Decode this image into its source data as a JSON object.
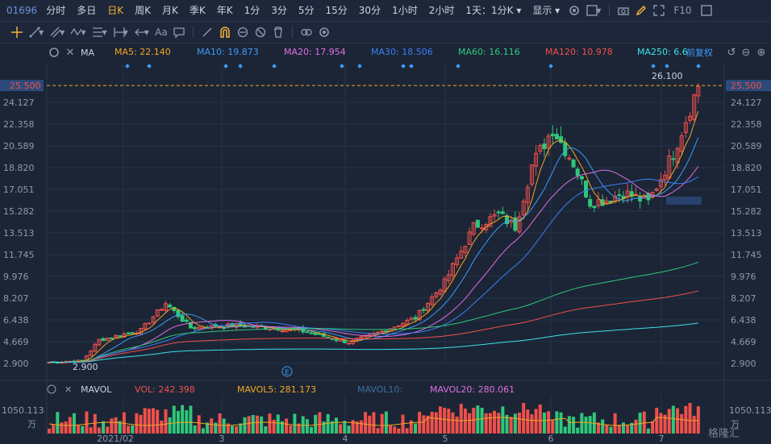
{
  "header": {
    "stock_code": "01696",
    "periods": [
      "分时",
      "多日",
      "日K",
      "周K",
      "月K",
      "季K",
      "年K",
      "1分",
      "3分",
      "5分",
      "15分",
      "30分",
      "1小时",
      "2小时"
    ],
    "active_period": "日K",
    "dropdown_label": "1天：1分K",
    "display_label": "显示",
    "f10_label": "F10"
  },
  "ma_indicators": {
    "name": "MA",
    "items": [
      {
        "label": "MA5: 22.140",
        "color": "#f5a623"
      },
      {
        "label": "MA10: 19.873",
        "color": "#3d9cf5"
      },
      {
        "label": "MA20: 17.954",
        "color": "#e070e0"
      },
      {
        "label": "MA30: 18.506",
        "color": "#3d7ef5"
      },
      {
        "label": "MA60: 16.116",
        "color": "#2fc77a"
      },
      {
        "label": "MA120: 10.978",
        "color": "#f0504a"
      },
      {
        "label": "MA250: 6.6",
        "color": "#3fe0e8"
      }
    ],
    "adjust_label": "前复权"
  },
  "vol_indicators": {
    "name": "MAVOL",
    "items": [
      {
        "label": "VOL: 242.398",
        "color": "#f0504a"
      },
      {
        "label": "MAVOL5: 281.173",
        "color": "#f5a623"
      },
      {
        "label": "MAVOL10:",
        "color": "#3d6fa0"
      },
      {
        "label": "MAVOL20: 280.061",
        "color": "#e070e0"
      }
    ],
    "axis_max": "1050.113",
    "unit": "万"
  },
  "chart_data": {
    "type": "candlestick",
    "y_ticks": [
      "24.127",
      "22.358",
      "20.589",
      "18.820",
      "17.051",
      "15.282",
      "13.513",
      "11.745",
      "9.976",
      "8.207",
      "6.438",
      "4.669",
      "2.900"
    ],
    "ylim": [
      2.9,
      25.9
    ],
    "x_ticks": [
      "2021/02",
      "3",
      "4",
      "5",
      "6",
      "7"
    ],
    "current_price_label": "25.500",
    "current_price": 25.5,
    "max_label": "26.100",
    "min_label": "2.900",
    "event_marker": "E"
  },
  "watermark": "格隆汇",
  "colors": {
    "up": "#f0504a",
    "down": "#2fc77a",
    "background": "#1b2536",
    "accent": "#f5b23a"
  }
}
